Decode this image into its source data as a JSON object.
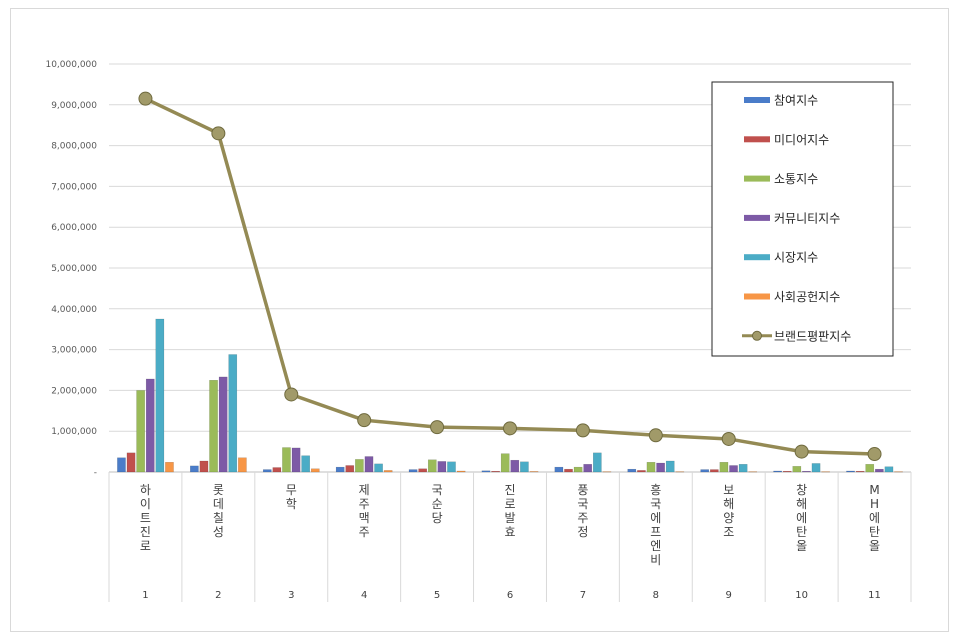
{
  "chart_data": {
    "type": "bar",
    "x": [
      1,
      2,
      3,
      4,
      5,
      6,
      7,
      8,
      9,
      10,
      11
    ],
    "categories": [
      "하이트진로",
      "롯데칠성",
      "무학",
      "제주맥주",
      "국순당",
      "진로발효",
      "풍국주정",
      "흥국에프엔비",
      "보해양조",
      "창해에탄올",
      "MH에탄올"
    ],
    "ylim": [
      0,
      10000000
    ],
    "y_ticks": [
      "-",
      "1,000,000",
      "2,000,000",
      "3,000,000",
      "4,000,000",
      "5,000,000",
      "6,000,000",
      "7,000,000",
      "8,000,000",
      "9,000,000",
      "10,000,000"
    ],
    "grid": true,
    "legend_position": "right",
    "series": [
      {
        "name": "참여지수",
        "type": "bar",
        "color": "#4a7cc9",
        "values": [
          350000,
          150000,
          60000,
          120000,
          60000,
          30000,
          120000,
          70000,
          60000,
          25000,
          25000
        ]
      },
      {
        "name": "미디어지수",
        "type": "bar",
        "color": "#c0504d",
        "values": [
          470000,
          270000,
          110000,
          160000,
          80000,
          20000,
          70000,
          40000,
          60000,
          20000,
          20000
        ]
      },
      {
        "name": "소통지수",
        "type": "bar",
        "color": "#9bbb59",
        "values": [
          2000000,
          2250000,
          600000,
          310000,
          300000,
          450000,
          120000,
          240000,
          240000,
          140000,
          190000
        ]
      },
      {
        "name": "커뮤니티지수",
        "type": "bar",
        "color": "#7d5aa6",
        "values": [
          2280000,
          2330000,
          590000,
          380000,
          260000,
          290000,
          190000,
          220000,
          160000,
          20000,
          70000
        ]
      },
      {
        "name": "시장지수",
        "type": "bar",
        "color": "#4bacc6",
        "values": [
          3750000,
          2880000,
          400000,
          200000,
          250000,
          250000,
          470000,
          270000,
          190000,
          210000,
          130000
        ]
      },
      {
        "name": "사회공헌지수",
        "type": "bar",
        "color": "#f79646",
        "values": [
          240000,
          350000,
          80000,
          40000,
          25000,
          15000,
          10000,
          10000,
          10000,
          10000,
          10000
        ]
      },
      {
        "name": "브랜드평판지수",
        "type": "line",
        "color": "#948a54",
        "values": [
          9150000,
          8300000,
          1900000,
          1270000,
          1100000,
          1070000,
          1020000,
          900000,
          810000,
          500000,
          440000
        ]
      }
    ]
  }
}
